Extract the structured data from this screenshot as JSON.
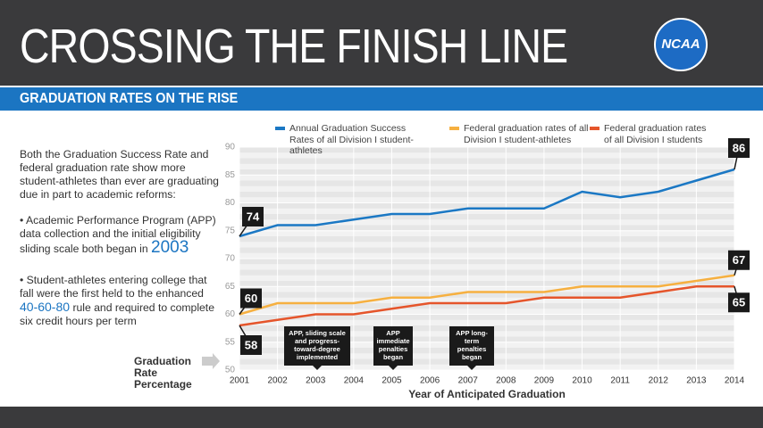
{
  "header": {
    "title": "CROSSING THE FINISH LINE",
    "logo": "NCAA",
    "subtitle": "GRADUATION RATES ON THE RISE"
  },
  "sidebar": {
    "intro": "Both the Graduation Success Rate and federal graduation rate show more student-athletes than ever are graduating due in part to academic reforms:",
    "bullet1": "• Academic Performance Program (APP) data collection and the initial eligibility sliding scale both began in",
    "bullet1_highlight": "2003",
    "bullet2_start": "• Student-athletes entering college that fall were the first held to the enhanced",
    "bullet2_highlight": "40-60-80",
    "bullet2_end": "rule and required to complete six credit hours per term"
  },
  "chart_data": {
    "type": "line",
    "x": [
      2001,
      2002,
      2003,
      2004,
      2005,
      2006,
      2007,
      2008,
      2009,
      2010,
      2011,
      2012,
      2013,
      2014
    ],
    "xlim": [
      2001,
      2014
    ],
    "xticks": [
      2001,
      2002,
      2003,
      2004,
      2005,
      2006,
      2007,
      2008,
      2009,
      2010,
      2011,
      2012,
      2013,
      2014
    ],
    "ylim": [
      50,
      90
    ],
    "yticks": [
      50,
      55,
      60,
      65,
      70,
      75,
      80,
      85,
      90
    ],
    "grid": true,
    "x_label": "Year of Anticipated Graduation",
    "y_label": "Graduation Rate Percentage",
    "series": [
      {
        "name": "Annual Graduation Success Rates of all Division I student-athletes",
        "color": "#1b78c4",
        "values": [
          74,
          76,
          76,
          77,
          78,
          78,
          79,
          79,
          79,
          82,
          81,
          82,
          84,
          86
        ]
      },
      {
        "name": "Federal graduation rates of all Division I student-athletes",
        "color": "#f6b040",
        "values": [
          60,
          62,
          62,
          62,
          63,
          63,
          64,
          64,
          64,
          65,
          65,
          65,
          66,
          67
        ]
      },
      {
        "name": "Federal graduation rates of all Division I students",
        "color": "#e5552b",
        "values": [
          58,
          59,
          60,
          60,
          61,
          62,
          62,
          62,
          63,
          63,
          63,
          64,
          65,
          65
        ]
      }
    ],
    "annotations": [
      "APP, sliding scale and progress-toward-degree implemented",
      "APP immediate penalties began",
      "APP long-term penalties began"
    ]
  }
}
